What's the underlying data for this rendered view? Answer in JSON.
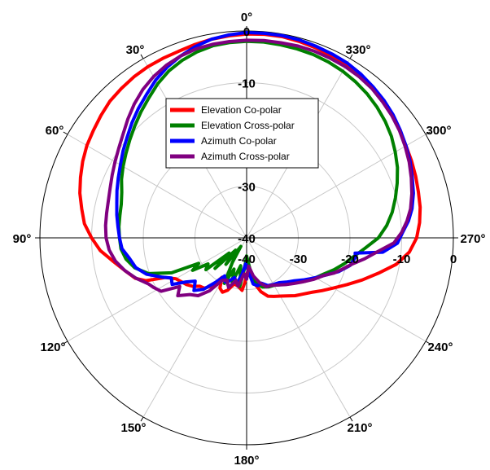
{
  "chart_data": {
    "type": "polar-line",
    "radial_axis": {
      "min": -40,
      "max": 0,
      "ticks": [
        0,
        -10,
        -20,
        -30,
        -40
      ],
      "tick_labels": [
        "0",
        "-10",
        "-20",
        "-30",
        "-40"
      ]
    },
    "lower_axis_labels": [
      "-40",
      "-30",
      "-20",
      "-10",
      "0"
    ],
    "angle_direction": "counterclockwise",
    "angle_zero": "top",
    "angle_ticks": [
      0,
      30,
      60,
      90,
      120,
      150,
      180,
      210,
      240,
      270,
      300,
      330
    ],
    "angle_tick_labels": [
      "0°",
      "30°",
      "60°",
      "90°",
      "120°",
      "150°",
      "180°",
      "210°",
      "240°",
      "270°",
      "300°",
      "330°"
    ],
    "grid": true,
    "legend_placement": "center-top",
    "series": [
      {
        "name": "Elevation Co-polar",
        "color": "#ff0000",
        "points": [
          [
            0,
            -0.6
          ],
          [
            5,
            -0.8
          ],
          [
            10,
            -1.0
          ],
          [
            15,
            -1.3
          ],
          [
            20,
            -1.6
          ],
          [
            25,
            -1.7
          ],
          [
            30,
            -1.8
          ],
          [
            35,
            -2.0
          ],
          [
            40,
            -2.3
          ],
          [
            45,
            -2.6
          ],
          [
            50,
            -3.2
          ],
          [
            55,
            -3.8
          ],
          [
            60,
            -4.3
          ],
          [
            65,
            -5.0
          ],
          [
            70,
            -5.8
          ],
          [
            75,
            -6.6
          ],
          [
            80,
            -7.6
          ],
          [
            85,
            -8.5
          ],
          [
            90,
            -10.0
          ],
          [
            95,
            -11.6
          ],
          [
            100,
            -13.8
          ],
          [
            105,
            -15.6
          ],
          [
            110,
            -17.1
          ],
          [
            113,
            -18.8
          ],
          [
            116,
            -22.5
          ],
          [
            120,
            -24.2
          ],
          [
            124,
            -24.8
          ],
          [
            128,
            -25.3
          ],
          [
            132,
            -26.0
          ],
          [
            136,
            -27.0
          ],
          [
            140,
            -27.3
          ],
          [
            144,
            -28.5
          ],
          [
            148,
            -31.0
          ],
          [
            152,
            -29.0
          ],
          [
            156,
            -28.5
          ],
          [
            160,
            -29.2
          ],
          [
            165,
            -30.8
          ],
          [
            170,
            -30.5
          ],
          [
            175,
            -29.8
          ],
          [
            178,
            -31.5
          ],
          [
            180,
            -33.0
          ],
          [
            185,
            -34.0
          ],
          [
            190,
            -31.0
          ],
          [
            195,
            -29.2
          ],
          [
            200,
            -28.0
          ],
          [
            205,
            -27.5
          ],
          [
            210,
            -27.0
          ],
          [
            215,
            -26.3
          ],
          [
            220,
            -25.4
          ],
          [
            225,
            -24.6
          ],
          [
            230,
            -23.6
          ],
          [
            235,
            -22.2
          ],
          [
            240,
            -20.6
          ],
          [
            245,
            -18.6
          ],
          [
            250,
            -16.2
          ],
          [
            255,
            -13.6
          ],
          [
            260,
            -10.6
          ],
          [
            265,
            -8.4
          ],
          [
            270,
            -7.1
          ],
          [
            275,
            -6.4
          ],
          [
            280,
            -5.9
          ],
          [
            285,
            -5.6
          ],
          [
            290,
            -5.2
          ],
          [
            295,
            -4.8
          ],
          [
            300,
            -4.4
          ],
          [
            305,
            -3.8
          ],
          [
            310,
            -3.2
          ],
          [
            315,
            -2.6
          ],
          [
            320,
            -2.2
          ],
          [
            325,
            -1.8
          ],
          [
            330,
            -1.5
          ],
          [
            335,
            -1.2
          ],
          [
            340,
            -0.9
          ],
          [
            345,
            -0.7
          ],
          [
            350,
            -0.5
          ],
          [
            355,
            -0.5
          ],
          [
            360,
            -0.6
          ]
        ]
      },
      {
        "name": "Elevation Cross-polar",
        "color": "#008000",
        "points": [
          [
            0,
            -2.0
          ],
          [
            5,
            -2.1
          ],
          [
            10,
            -2.3
          ],
          [
            15,
            -2.8
          ],
          [
            20,
            -3.5
          ],
          [
            25,
            -4.4
          ],
          [
            30,
            -5.6
          ],
          [
            35,
            -7.0
          ],
          [
            40,
            -8.2
          ],
          [
            45,
            -9.4
          ],
          [
            50,
            -10.5
          ],
          [
            55,
            -11.5
          ],
          [
            60,
            -12.4
          ],
          [
            65,
            -13.3
          ],
          [
            70,
            -14.3
          ],
          [
            75,
            -14.9
          ],
          [
            80,
            -15.1
          ],
          [
            85,
            -15.2
          ],
          [
            90,
            -15.4
          ],
          [
            95,
            -15.6
          ],
          [
            100,
            -16.3
          ],
          [
            105,
            -17.6
          ],
          [
            110,
            -19.8
          ],
          [
            115,
            -24.0
          ],
          [
            118,
            -29.5
          ],
          [
            121,
            -27.8
          ],
          [
            124,
            -31.0
          ],
          [
            128,
            -30.0
          ],
          [
            131,
            -35.5
          ],
          [
            134,
            -31.5
          ],
          [
            138,
            -36.8
          ],
          [
            142,
            -33.5
          ],
          [
            146,
            -38.0
          ],
          [
            150,
            -34.5
          ],
          [
            154,
            -30.2
          ],
          [
            158,
            -33.5
          ],
          [
            162,
            -31.0
          ],
          [
            168,
            -34.5
          ],
          [
            172,
            -30.5
          ],
          [
            176,
            -34.0
          ],
          [
            180,
            -36.5
          ],
          [
            186,
            -34.0
          ],
          [
            192,
            -31.0
          ],
          [
            198,
            -30.0
          ],
          [
            204,
            -29.6
          ],
          [
            210,
            -29.4
          ],
          [
            216,
            -28.8
          ],
          [
            222,
            -28.0
          ],
          [
            228,
            -27.0
          ],
          [
            234,
            -25.8
          ],
          [
            240,
            -24.6
          ],
          [
            245,
            -23.5
          ],
          [
            250,
            -22.0
          ],
          [
            255,
            -20.5
          ],
          [
            260,
            -19.0
          ],
          [
            265,
            -17.0
          ],
          [
            270,
            -14.5
          ],
          [
            275,
            -12.8
          ],
          [
            280,
            -11.4
          ],
          [
            285,
            -10.2
          ],
          [
            290,
            -9.0
          ],
          [
            295,
            -7.8
          ],
          [
            300,
            -6.8
          ],
          [
            305,
            -5.8
          ],
          [
            310,
            -5.0
          ],
          [
            315,
            -4.3
          ],
          [
            320,
            -3.7
          ],
          [
            325,
            -3.2
          ],
          [
            330,
            -2.8
          ],
          [
            335,
            -2.5
          ],
          [
            340,
            -2.3
          ],
          [
            345,
            -2.2
          ],
          [
            350,
            -2.1
          ],
          [
            355,
            -2.0
          ],
          [
            360,
            -2.0
          ]
        ]
      },
      {
        "name": "Azimuth Co-polar",
        "color": "#0000ff",
        "points": [
          [
            0,
            -0.3
          ],
          [
            5,
            -0.6
          ],
          [
            10,
            -1.0
          ],
          [
            15,
            -1.7
          ],
          [
            20,
            -2.6
          ],
          [
            25,
            -3.6
          ],
          [
            30,
            -4.8
          ],
          [
            35,
            -6.2
          ],
          [
            40,
            -7.4
          ],
          [
            45,
            -8.6
          ],
          [
            50,
            -9.8
          ],
          [
            55,
            -10.8
          ],
          [
            60,
            -11.8
          ],
          [
            65,
            -12.6
          ],
          [
            70,
            -13.3
          ],
          [
            75,
            -14.0
          ],
          [
            80,
            -14.5
          ],
          [
            85,
            -15.0
          ],
          [
            90,
            -15.4
          ],
          [
            95,
            -15.8
          ],
          [
            100,
            -17.0
          ],
          [
            105,
            -17.8
          ],
          [
            110,
            -19.4
          ],
          [
            115,
            -22.0
          ],
          [
            118,
            -23.5
          ],
          [
            122,
            -23.0
          ],
          [
            126,
            -25.5
          ],
          [
            130,
            -27.0
          ],
          [
            135,
            -25.6
          ],
          [
            140,
            -27.0
          ],
          [
            145,
            -29.5
          ],
          [
            150,
            -31.5
          ],
          [
            154,
            -30.5
          ],
          [
            158,
            -31.0
          ],
          [
            163,
            -32.0
          ],
          [
            168,
            -31.0
          ],
          [
            173,
            -33.0
          ],
          [
            178,
            -35.0
          ],
          [
            183,
            -33.5
          ],
          [
            188,
            -31.0
          ],
          [
            193,
            -30.5
          ],
          [
            198,
            -30.8
          ],
          [
            204,
            -29.9
          ],
          [
            210,
            -29.6
          ],
          [
            216,
            -29.3
          ],
          [
            222,
            -28.5
          ],
          [
            228,
            -27.6
          ],
          [
            234,
            -26.2
          ],
          [
            240,
            -24.6
          ],
          [
            245,
            -23.0
          ],
          [
            250,
            -21.0
          ],
          [
            255,
            -19.3
          ],
          [
            260,
            -18.6
          ],
          [
            262,
            -18.8
          ],
          [
            264,
            -13.5
          ],
          [
            268,
            -10.8
          ],
          [
            272,
            -9.8
          ],
          [
            276,
            -8.5
          ],
          [
            280,
            -7.5
          ],
          [
            285,
            -6.6
          ],
          [
            290,
            -5.9
          ],
          [
            295,
            -5.1
          ],
          [
            300,
            -4.4
          ],
          [
            305,
            -3.7
          ],
          [
            310,
            -3.0
          ],
          [
            315,
            -2.4
          ],
          [
            320,
            -1.9
          ],
          [
            325,
            -1.4
          ],
          [
            330,
            -1.0
          ],
          [
            335,
            -0.8
          ],
          [
            340,
            -0.6
          ],
          [
            345,
            -0.4
          ],
          [
            350,
            -0.3
          ],
          [
            355,
            -0.3
          ],
          [
            360,
            -0.3
          ]
        ]
      },
      {
        "name": "Azimuth Cross-polar",
        "color": "#800080",
        "points": [
          [
            0,
            -1.8
          ],
          [
            5,
            -1.9
          ],
          [
            10,
            -2.0
          ],
          [
            15,
            -2.2
          ],
          [
            20,
            -2.6
          ],
          [
            25,
            -3.2
          ],
          [
            30,
            -4.0
          ],
          [
            35,
            -5.0
          ],
          [
            40,
            -6.2
          ],
          [
            45,
            -7.5
          ],
          [
            50,
            -8.8
          ],
          [
            55,
            -9.8
          ],
          [
            60,
            -10.6
          ],
          [
            65,
            -11.3
          ],
          [
            70,
            -11.9
          ],
          [
            75,
            -12.3
          ],
          [
            80,
            -12.5
          ],
          [
            85,
            -12.6
          ],
          [
            90,
            -12.8
          ],
          [
            95,
            -13.3
          ],
          [
            100,
            -14.2
          ],
          [
            105,
            -15.6
          ],
          [
            110,
            -17.2
          ],
          [
            115,
            -19.0
          ],
          [
            118,
            -19.6
          ],
          [
            122,
            -20.5
          ],
          [
            126,
            -24.0
          ],
          [
            130,
            -22.6
          ],
          [
            135,
            -24.5
          ],
          [
            140,
            -25.4
          ],
          [
            145,
            -27.5
          ],
          [
            150,
            -30.5
          ],
          [
            155,
            -31.0
          ],
          [
            160,
            -29.8
          ],
          [
            166,
            -31.5
          ],
          [
            170,
            -30.5
          ],
          [
            176,
            -33.0
          ],
          [
            180,
            -32.0
          ],
          [
            184,
            -34.5
          ],
          [
            190,
            -32.5
          ],
          [
            196,
            -31.0
          ],
          [
            202,
            -29.8
          ],
          [
            208,
            -29.6
          ],
          [
            214,
            -29.0
          ],
          [
            220,
            -28.2
          ],
          [
            226,
            -27.3
          ],
          [
            232,
            -26.2
          ],
          [
            238,
            -24.8
          ],
          [
            244,
            -23.4
          ],
          [
            248,
            -21.8
          ],
          [
            252,
            -20.5
          ],
          [
            256,
            -19.0
          ],
          [
            260,
            -16.8
          ],
          [
            264,
            -14.5
          ],
          [
            268,
            -11.5
          ],
          [
            272,
            -10.0
          ],
          [
            276,
            -8.8
          ],
          [
            280,
            -7.8
          ],
          [
            285,
            -6.9
          ],
          [
            290,
            -6.1
          ],
          [
            295,
            -5.3
          ],
          [
            300,
            -4.6
          ],
          [
            305,
            -3.9
          ],
          [
            310,
            -3.3
          ],
          [
            315,
            -2.8
          ],
          [
            320,
            -2.3
          ],
          [
            325,
            -2.0
          ],
          [
            330,
            -1.8
          ],
          [
            335,
            -1.7
          ],
          [
            340,
            -1.6
          ],
          [
            345,
            -1.6
          ],
          [
            350,
            -1.7
          ],
          [
            355,
            -1.7
          ],
          [
            360,
            -1.8
          ]
        ]
      }
    ]
  }
}
